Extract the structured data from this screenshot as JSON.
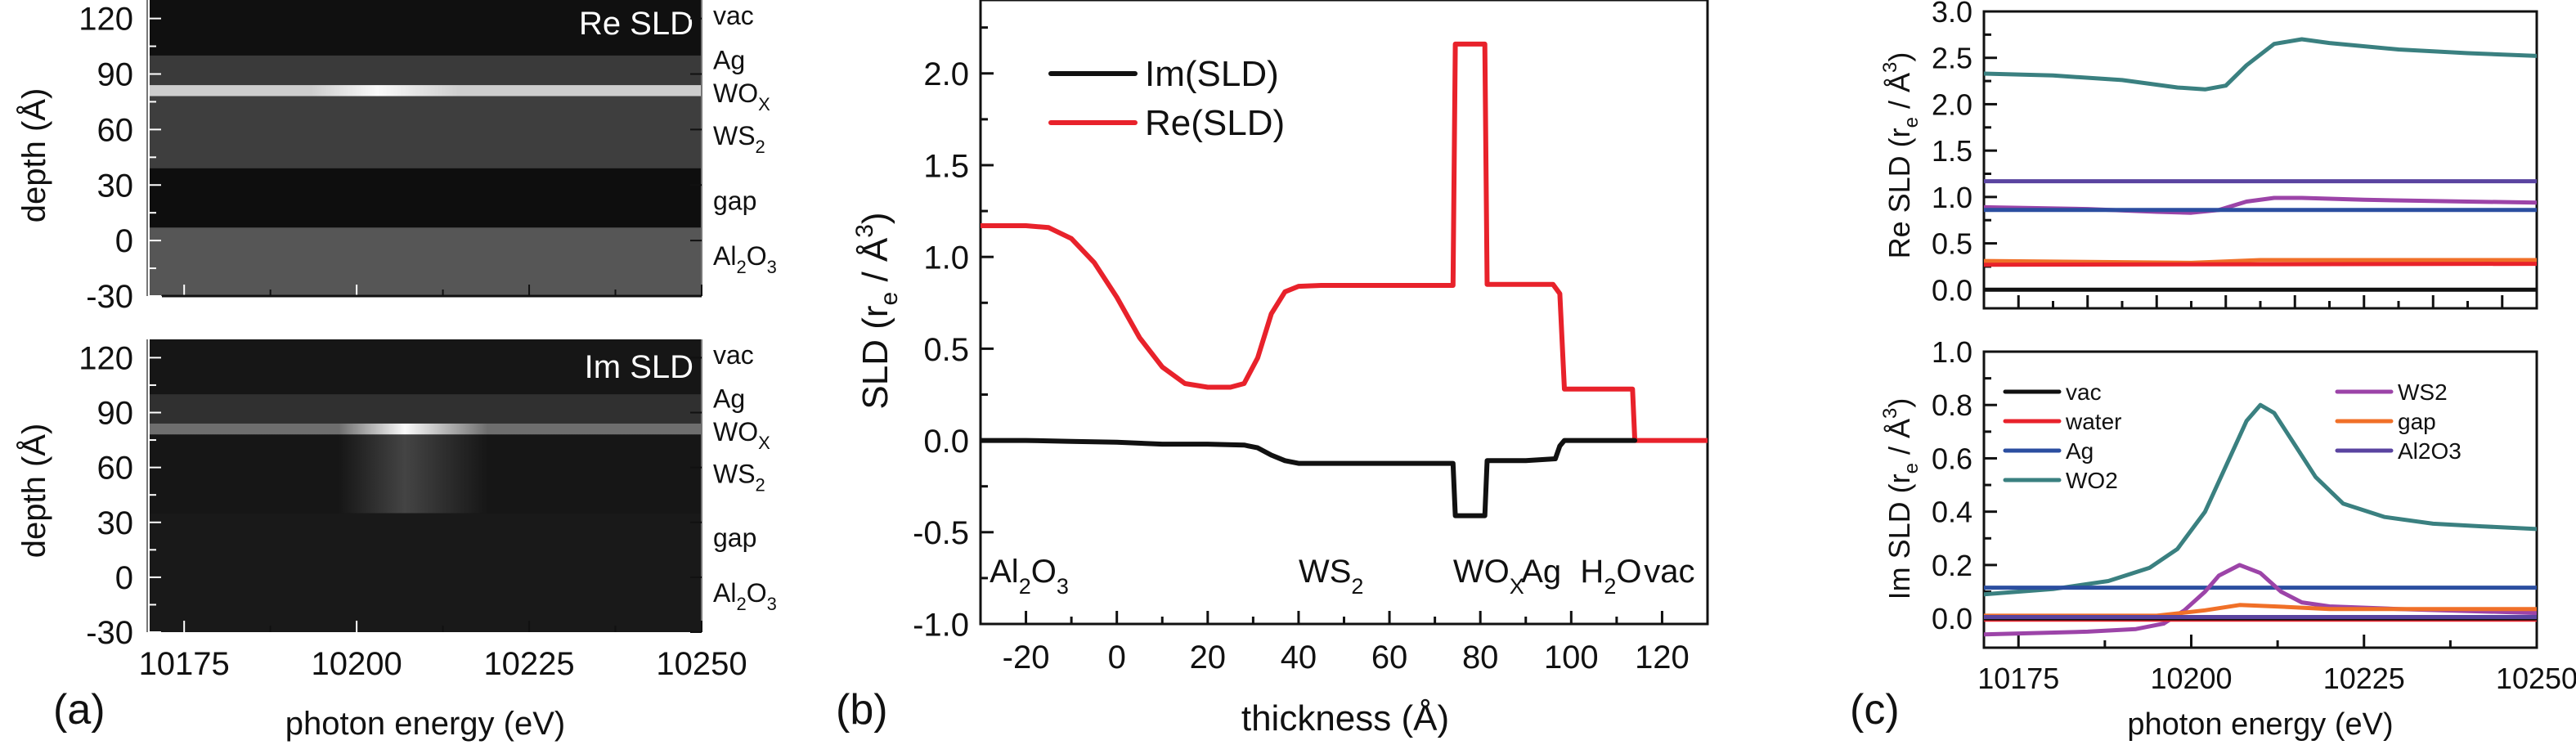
{
  "chart_data": [
    {
      "id": "a-top",
      "panel_label": "",
      "type": "heatmap",
      "title": "Re SLD",
      "xlabel": "",
      "ylabel": "depth (Å)",
      "xlim": [
        10170,
        10250
      ],
      "ylim": [
        -30,
        130
      ],
      "xticks": [],
      "yticks": [
        "120",
        "90",
        "60",
        "30",
        "0",
        "-30"
      ],
      "ytick_values": [
        120,
        90,
        60,
        30,
        0,
        -30
      ],
      "layer_labels": [
        {
          "text": "vac",
          "sub": "",
          "depth": 122
        },
        {
          "text": "Ag",
          "sub": "",
          "depth": 98
        },
        {
          "text": "WO",
          "sub": "X",
          "depth": 80
        },
        {
          "text": "WS",
          "sub": "2",
          "depth": 57
        },
        {
          "text": "gap",
          "sub": "",
          "depth": 22
        },
        {
          "text": "Al",
          "sub": "2",
          "sub2": "3",
          "mid": "O",
          "depth": -8
        }
      ],
      "bands": [
        {
          "from": 100,
          "to": 130,
          "gray": 16
        },
        {
          "from": 84,
          "to": 100,
          "gray": 58
        },
        {
          "from": 78,
          "to": 84,
          "gray": 205,
          "peak_eV": 10203,
          "peak_gray": 250
        },
        {
          "from": 39,
          "to": 78,
          "gray": 62
        },
        {
          "from": 7,
          "to": 39,
          "gray": 14
        },
        {
          "from": -30,
          "to": 7,
          "gray": 86
        }
      ]
    },
    {
      "id": "a-bottom",
      "panel_label": "(a)",
      "type": "heatmap",
      "title": "Im SLD",
      "xlabel": "photon energy (eV)",
      "ylabel": "depth (Å)",
      "xlim": [
        10170,
        10250
      ],
      "ylim": [
        -30,
        130
      ],
      "xticks": [
        "10175",
        "10200",
        "10225",
        "10250"
      ],
      "xtick_values": [
        10175,
        10200,
        10225,
        10250
      ],
      "yticks": [
        "120",
        "90",
        "60",
        "30",
        "0",
        "-30"
      ],
      "ytick_values": [
        120,
        90,
        60,
        30,
        0,
        -30
      ],
      "layer_labels": [
        {
          "text": "vac",
          "sub": "",
          "depth": 122
        },
        {
          "text": "Ag",
          "sub": "",
          "depth": 98
        },
        {
          "text": "WO",
          "sub": "X",
          "depth": 80
        },
        {
          "text": "WS",
          "sub": "2",
          "depth": 57
        },
        {
          "text": "gap",
          "sub": "",
          "depth": 22
        },
        {
          "text": "Al",
          "sub": "2",
          "sub2": "3",
          "mid": "O",
          "depth": -8
        }
      ],
      "bands": [
        {
          "from": 100,
          "to": 130,
          "gray": 22
        },
        {
          "from": 84,
          "to": 100,
          "gray": 48
        },
        {
          "from": 78,
          "to": 84,
          "gray": 110,
          "peak_eV": 10207,
          "peak_gray": 250
        },
        {
          "from": 35,
          "to": 78,
          "gray": 22,
          "peak_eV": 10207,
          "peak_gray": 68
        },
        {
          "from": -30,
          "to": 35,
          "gray": 25
        }
      ]
    },
    {
      "id": "b",
      "panel_label": "(b)",
      "type": "line",
      "title": "",
      "xlabel": "thickness (Å)",
      "ylabel": "SLD (r_e / Å^3)",
      "xlim": [
        -30,
        130
      ],
      "ylim": [
        -1.0,
        2.4
      ],
      "xticks": [
        "-20",
        "0",
        "20",
        "40",
        "60",
        "80",
        "100",
        "120"
      ],
      "xtick_values": [
        -20,
        0,
        20,
        40,
        60,
        80,
        100,
        120
      ],
      "yticks": [
        "2.0",
        "1.5",
        "1.0",
        "0.5",
        "0.0",
        "-0.5",
        "-1.0"
      ],
      "ytick_values": [
        2.0,
        1.5,
        1.0,
        0.5,
        0.0,
        -0.5,
        -1.0
      ],
      "legend": {
        "position": "top-left",
        "entries": [
          "Im(SLD)",
          "Re(SLD)"
        ]
      },
      "annotations": [
        {
          "text": "Al",
          "sub": "2",
          "mid": "O",
          "sub2": "3",
          "x": -28
        },
        {
          "text": "WS",
          "sub": "2",
          "x": 40
        },
        {
          "text": "WO",
          "sub": "X",
          "x": 74
        },
        {
          "text": "Ag",
          "sub": "",
          "x": 89
        },
        {
          "text": "H",
          "sub": "2",
          "mid": "O",
          "x": 102
        },
        {
          "text": "vac",
          "sub": "",
          "x": 116
        }
      ],
      "series": [
        {
          "name": "Im(SLD)",
          "color": "#111111",
          "x": [
            -30,
            -20,
            -10,
            0,
            10,
            20,
            28,
            31,
            34,
            37,
            40,
            50,
            60,
            74,
            74.5,
            81,
            81.5,
            90,
            96.5,
            97.5,
            98.5,
            110,
            114
          ],
          "y": [
            0.0,
            0.0,
            -0.005,
            -0.01,
            -0.02,
            -0.02,
            -0.025,
            -0.04,
            -0.08,
            -0.11,
            -0.125,
            -0.125,
            -0.125,
            -0.125,
            -0.41,
            -0.41,
            -0.11,
            -0.11,
            -0.1,
            -0.03,
            0.0,
            0.0,
            0.0
          ]
        },
        {
          "name": "Re(SLD)",
          "color": "#e8222b",
          "x": [
            -30,
            -20,
            -15,
            -10,
            -5,
            0,
            5,
            10,
            15,
            20,
            25,
            28,
            31,
            34,
            37,
            40,
            45,
            60,
            74,
            74.5,
            81,
            81.5,
            96,
            97.5,
            98.5,
            113.5,
            114,
            130
          ],
          "y": [
            1.17,
            1.17,
            1.16,
            1.1,
            0.97,
            0.78,
            0.56,
            0.4,
            0.31,
            0.29,
            0.29,
            0.31,
            0.45,
            0.69,
            0.81,
            0.84,
            0.845,
            0.845,
            0.845,
            2.16,
            2.16,
            0.85,
            0.85,
            0.8,
            0.28,
            0.28,
            0.0,
            0.0
          ]
        }
      ]
    },
    {
      "id": "c-top",
      "panel_label": "",
      "type": "line",
      "title": "",
      "xlabel": "",
      "ylabel": "Re SLD (r_e / Å^3)",
      "xlim": [
        10170,
        10250
      ],
      "ylim": [
        -0.2,
        3.0
      ],
      "xticks": [],
      "xtick_values": [
        10175,
        10200,
        10225,
        10250
      ],
      "yticks": [
        "3.0",
        "2.5",
        "2.0",
        "1.5",
        "1.0",
        "0.5",
        "0.0"
      ],
      "ytick_values": [
        3.0,
        2.5,
        2.0,
        1.5,
        1.0,
        0.5,
        0.0
      ],
      "series": [
        {
          "name": "vac",
          "color": "#111111",
          "x": [
            10170,
            10250
          ],
          "y": [
            0.0,
            0.0
          ]
        },
        {
          "name": "water",
          "color": "#e8222b",
          "x": [
            10170,
            10250
          ],
          "y": [
            0.27,
            0.28
          ]
        },
        {
          "name": "Ag",
          "color": "#2b4ea0",
          "x": [
            10170,
            10250
          ],
          "y": [
            0.86,
            0.86
          ]
        },
        {
          "name": "WO2",
          "color": "#3a8080",
          "x": [
            10170,
            10180,
            10190,
            10198,
            10202,
            10205,
            10208,
            10212,
            10216,
            10220,
            10230,
            10240,
            10250
          ],
          "y": [
            2.33,
            2.31,
            2.26,
            2.18,
            2.16,
            2.2,
            2.42,
            2.65,
            2.7,
            2.66,
            2.59,
            2.55,
            2.52
          ]
        },
        {
          "name": "WS2",
          "color": "#9c44a8",
          "x": [
            10170,
            10185,
            10195,
            10200,
            10204,
            10208,
            10212,
            10216,
            10225,
            10240,
            10250
          ],
          "y": [
            0.89,
            0.87,
            0.84,
            0.83,
            0.86,
            0.95,
            0.99,
            0.99,
            0.97,
            0.95,
            0.94
          ]
        },
        {
          "name": "gap",
          "color": "#f07028",
          "x": [
            10170,
            10200,
            10210,
            10250
          ],
          "y": [
            0.31,
            0.29,
            0.32,
            0.32
          ]
        },
        {
          "name": "Al2O3",
          "color": "#5a44a0",
          "x": [
            10170,
            10250
          ],
          "y": [
            1.17,
            1.17
          ]
        }
      ]
    },
    {
      "id": "c-bottom",
      "panel_label": "(c)",
      "type": "line",
      "title": "",
      "xlabel": "photon energy (eV)",
      "ylabel": "Im SLD (r_e / Å^3)",
      "xlim": [
        10170,
        10250
      ],
      "ylim": [
        -0.11,
        1.0
      ],
      "xticks": [
        "10175",
        "10200",
        "10225",
        "10250"
      ],
      "xtick_values": [
        10175,
        10200,
        10225,
        10250
      ],
      "yticks": [
        "1.0",
        "0.8",
        "0.6",
        "0.4",
        "0.2",
        "0.0"
      ],
      "ytick_values": [
        1.0,
        0.8,
        0.6,
        0.4,
        0.2,
        0.0
      ],
      "legend": {
        "position": "top",
        "entries": [
          "vac",
          "water",
          "Ag",
          "WO2",
          "WS2",
          "gap",
          "Al2O3"
        ]
      },
      "series": [
        {
          "name": "vac",
          "color": "#111111",
          "x": [
            10170,
            10250
          ],
          "y": [
            0.0,
            0.0
          ]
        },
        {
          "name": "water",
          "color": "#e8222b",
          "x": [
            10170,
            10250
          ],
          "y": [
            -0.005,
            -0.005
          ]
        },
        {
          "name": "Ag",
          "color": "#2b4ea0",
          "x": [
            10170,
            10250
          ],
          "y": [
            0.115,
            0.115
          ]
        },
        {
          "name": "WO2",
          "color": "#3a8080",
          "x": [
            10170,
            10180,
            10188,
            10194,
            10198,
            10202,
            10205,
            10208,
            10210,
            10212,
            10215,
            10218,
            10222,
            10228,
            10235,
            10242,
            10250
          ],
          "y": [
            0.09,
            0.11,
            0.14,
            0.19,
            0.26,
            0.4,
            0.57,
            0.74,
            0.8,
            0.77,
            0.65,
            0.53,
            0.43,
            0.38,
            0.355,
            0.345,
            0.335
          ]
        },
        {
          "name": "WS2",
          "color": "#9c44a8",
          "x": [
            10170,
            10185,
            10192,
            10196,
            10199,
            10202,
            10204,
            10207,
            10210,
            10213,
            10216,
            10220,
            10230,
            10250
          ],
          "y": [
            -0.06,
            -0.05,
            -0.04,
            -0.02,
            0.03,
            0.1,
            0.16,
            0.2,
            0.17,
            0.1,
            0.06,
            0.045,
            0.035,
            0.02
          ]
        },
        {
          "name": "gap",
          "color": "#f07028",
          "x": [
            10170,
            10195,
            10202,
            10207,
            10212,
            10220,
            10250
          ],
          "y": [
            0.01,
            0.01,
            0.03,
            0.05,
            0.045,
            0.035,
            0.035
          ]
        },
        {
          "name": "Al2O3",
          "color": "#5a44a0",
          "x": [
            10170,
            10250
          ],
          "y": [
            0.005,
            0.005
          ]
        }
      ]
    }
  ]
}
